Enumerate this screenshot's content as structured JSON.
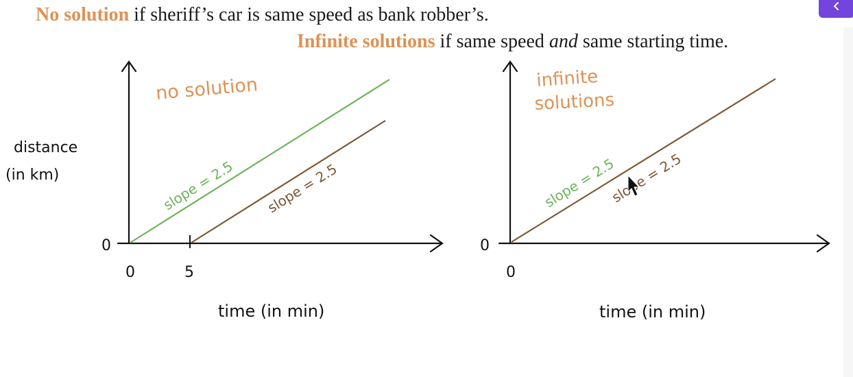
{
  "header": {
    "line1": {
      "highlight": "No solution",
      "rest": " if sheriff’s car is same speed as bank robber’s."
    },
    "line2": {
      "highlight": "Infinite solutions",
      "rest_before": " if same speed ",
      "emphasis": "and",
      "rest_after": " same starting time."
    }
  },
  "colors": {
    "highlight": "#dd9255",
    "green": "#6db35a",
    "brown": "#7d5734",
    "nav_button": "#7246dc"
  },
  "nav_button": {
    "icon": "chevron-left-icon"
  },
  "left_graph": {
    "y_axis_label_1": "distance",
    "y_axis_label_2": "(in km)",
    "y_origin": "0",
    "x_ticks": [
      "0",
      "5"
    ],
    "x_axis_label": "time (in min)",
    "annotation": "no solution",
    "green_line_label": "slope = 2.5",
    "brown_line_label": "slope = 2.5"
  },
  "right_graph": {
    "y_origin": "0",
    "x_ticks": [
      "0"
    ],
    "x_axis_label": "time (in min)",
    "annotation_1": "infinite",
    "annotation_2": "solutions",
    "green_line_label": "slope = 2.5",
    "brown_line_label": "slope = 2.5"
  }
}
